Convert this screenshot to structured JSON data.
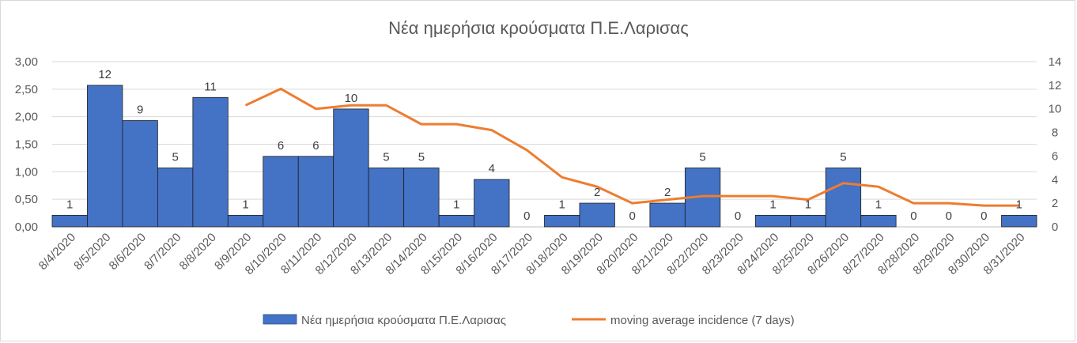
{
  "chart_data": {
    "type": "bar+line",
    "title": "Νέα ημερήσια κρούσματα Π.Ε.Λαρισας",
    "categories": [
      "8/4/2020",
      "8/5/2020",
      "8/6/2020",
      "8/7/2020",
      "8/8/2020",
      "8/9/2020",
      "8/10/2020",
      "8/11/2020",
      "8/12/2020",
      "8/13/2020",
      "8/14/2020",
      "8/15/2020",
      "8/16/2020",
      "8/17/2020",
      "8/18/2020",
      "8/19/2020",
      "8/20/2020",
      "8/21/2020",
      "8/22/2020",
      "8/23/2020",
      "8/24/2020",
      "8/25/2020",
      "8/26/2020",
      "8/27/2020",
      "8/28/2020",
      "8/29/2020",
      "8/30/2020",
      "8/31/2020"
    ],
    "left_axis": {
      "min": 0,
      "max": 3,
      "step": 0.5,
      "tick_labels": [
        "0,00",
        "0,50",
        "1,00",
        "1,50",
        "2,00",
        "2,50",
        "3,00"
      ]
    },
    "right_axis": {
      "min": 0,
      "max": 14,
      "step": 2,
      "tick_labels": [
        "0",
        "2",
        "4",
        "6",
        "8",
        "10",
        "12",
        "14"
      ]
    },
    "series": [
      {
        "name": "Νέα ημερήσια κρούσματα Π.Ε.Λαρισας",
        "kind": "bar",
        "axis": "left",
        "color": "#4472c4",
        "values": [
          0.21,
          2.57,
          1.93,
          1.07,
          2.35,
          0.21,
          1.28,
          1.28,
          2.14,
          1.07,
          1.07,
          0.21,
          0.86,
          0,
          0.21,
          0.43,
          0,
          0.43,
          1.07,
          0,
          0.21,
          0.21,
          1.07,
          0.21,
          0,
          0,
          0,
          0.21
        ],
        "data_labels": [
          "1",
          "12",
          "9",
          "5",
          "11",
          "1",
          "6",
          "6",
          "10",
          "5",
          "5",
          "1",
          "4",
          "0",
          "1",
          "2",
          "0",
          "2",
          "5",
          "0",
          "1",
          "1",
          "5",
          "1",
          "0",
          "0",
          "0",
          "1"
        ]
      },
      {
        "name": "moving average incidence (7 days)",
        "kind": "line",
        "axis": "right",
        "color": "#ed7d31",
        "values": [
          null,
          null,
          null,
          null,
          null,
          10.3,
          11.7,
          10.0,
          10.3,
          10.3,
          8.7,
          8.7,
          8.2,
          6.5,
          4.2,
          3.4,
          2.0,
          2.3,
          2.6,
          2.6,
          2.6,
          2.3,
          3.7,
          3.4,
          2.0,
          2.0,
          1.8,
          1.8
        ]
      }
    ],
    "legend_position": "bottom",
    "grid": true
  }
}
